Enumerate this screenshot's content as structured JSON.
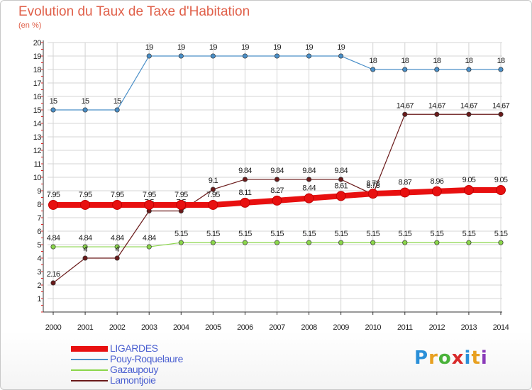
{
  "title": "Evolution du Taux de Taxe d'Habitation",
  "unit": "(en %)",
  "logo": {
    "text": "Proxiti",
    "colors": [
      "#2a8fd8",
      "#e8a020",
      "#4ab23a",
      "#d82a2a",
      "#2a8fd8",
      "#e8a020",
      "#8a3ab9"
    ]
  },
  "chart_data": {
    "type": "line",
    "x": [
      2000,
      2001,
      2002,
      2003,
      2004,
      2005,
      2006,
      2007,
      2008,
      2009,
      2010,
      2011,
      2012,
      2013,
      2014
    ],
    "ylim": [
      1,
      20
    ],
    "y_ticks": [
      1,
      2,
      3,
      4,
      5,
      6,
      7,
      8,
      9,
      10,
      11,
      12,
      13,
      14,
      15,
      16,
      17,
      18,
      19,
      20
    ],
    "grid": true,
    "legend_position": "bottom-left",
    "series": [
      {
        "name": "LIGARDES",
        "color": "#e81010",
        "emphasis": true,
        "values": [
          7.95,
          7.95,
          7.95,
          7.95,
          7.95,
          7.95,
          8.11,
          8.27,
          8.44,
          8.61,
          8.78,
          8.87,
          8.96,
          9.05,
          9.05
        ]
      },
      {
        "name": "Pouy-Roquelaure",
        "color": "#4a8fc8",
        "values": [
          15,
          15,
          15,
          19,
          19,
          19,
          19,
          19,
          19,
          19,
          18,
          18,
          18,
          18,
          18
        ]
      },
      {
        "name": "Gazaupouy",
        "color": "#8ad64a",
        "values": [
          4.84,
          4.84,
          4.84,
          4.84,
          5.15,
          5.15,
          5.15,
          5.15,
          5.15,
          5.15,
          5.15,
          5.15,
          5.15,
          5.15,
          5.15
        ]
      },
      {
        "name": "Lamontjoie",
        "color": "#6a1a1a",
        "values": [
          2.16,
          4,
          4,
          7.5,
          7.5,
          9.1,
          9.84,
          9.84,
          9.84,
          9.84,
          8.73,
          14.67,
          14.67,
          14.67,
          14.67
        ]
      }
    ]
  }
}
